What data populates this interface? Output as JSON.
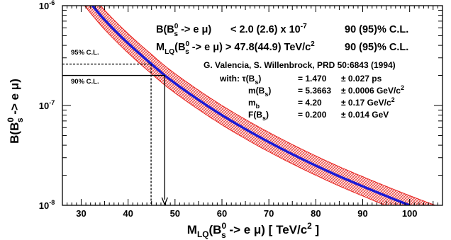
{
  "chart_data": {
    "type": "line",
    "x_label": {
      "prefix": "M",
      "sub1": "LQ",
      "mid": "(B",
      "sub2": "s",
      "sup2": "0",
      "suffix": " -> e μ)  [ TeV/c",
      "sup3": "2",
      "end": " ]"
    },
    "y_label": {
      "prefix": "B(B",
      "sup": "0",
      "sub": "s",
      "suffix": " -> e μ)"
    },
    "xlim": [
      26,
      107
    ],
    "ylim_log10": [
      -8,
      -6
    ],
    "x_ticks": [
      30,
      40,
      50,
      60,
      70,
      80,
      90,
      100
    ],
    "y_ticks": [
      {
        "base": "10",
        "exp": "-8",
        "value": 1e-08
      },
      {
        "base": "10",
        "exp": "-7",
        "value": 1e-07
      },
      {
        "base": "10",
        "exp": "-6",
        "value": 1e-06
      }
    ],
    "curve": {
      "note": "central prediction B = 4.8e-7 * (M/M0)^-4 region; sampled from plot",
      "x": [
        32.4,
        35,
        40,
        45,
        47.8,
        50,
        55,
        60,
        65,
        70,
        75,
        80,
        85,
        90,
        95,
        100
      ],
      "y": [
        1e-06,
        7.2e-07,
        4.2e-07,
        2.6e-07,
        2e-07,
        1.67e-07,
        1.14e-07,
        8e-08,
        5.8e-08,
        4.3e-08,
        3.25e-08,
        2.5e-08,
        1.95e-08,
        1.55e-08,
        1.24e-08,
        1e-08
      ],
      "band_rel_lo": 0.8,
      "band_rel_hi": 1.25
    },
    "limits": [
      {
        "cl": "90% C.L.",
        "branching": 2e-07,
        "mass": 47.8,
        "style": "solid"
      },
      {
        "cl": "95% C.L.",
        "branching": 2.6e-07,
        "mass": 44.9,
        "style": "dashed"
      }
    ],
    "colors": {
      "line": "#1a1ad6",
      "band": "#e8201c",
      "axis": "#000000"
    }
  },
  "annotations": {
    "line1": {
      "a": "B(B",
      "sup": "0",
      "sub": "s",
      "b": " -> e μ)",
      "c": "< 2.0 (2.6) x 10",
      "sup2": "-7",
      "d": "90 (95)% C.L."
    },
    "line2": {
      "a": "M",
      "sub": "LQ",
      "b": "(B",
      "sup2": "0",
      "sub2": "s",
      "c": " -> e μ) > 47.8(44.9) TeV/c",
      "sup3": "2",
      "d": "90 (95)% C.L."
    },
    "ref": "G. Valencia, S. Willenbrock, PRD 50:6843 (1994)",
    "params": [
      {
        "lead": "with: ",
        "name": "τ(B",
        "sub": "s",
        "close": ")",
        "eq": "= 1.470",
        "err": "± 0.027 ps"
      },
      {
        "lead": "",
        "name": "m(B",
        "sub": "s",
        "close": ")",
        "eq": "= 5.3663",
        "err": "± 0.0006 GeV/c",
        "sup": "2"
      },
      {
        "lead": "",
        "name": "m",
        "sub": "b",
        "close": "",
        "eq": "= 4.20",
        "err": "± 0.17 GeV/c",
        "sup": "2"
      },
      {
        "lead": "",
        "name": "F(B",
        "sub": "s",
        "close": ")",
        "eq": "= 0.200",
        "err": "± 0.014 GeV"
      }
    ],
    "cl95": "95% C.L.",
    "cl90": "90% C.L."
  }
}
